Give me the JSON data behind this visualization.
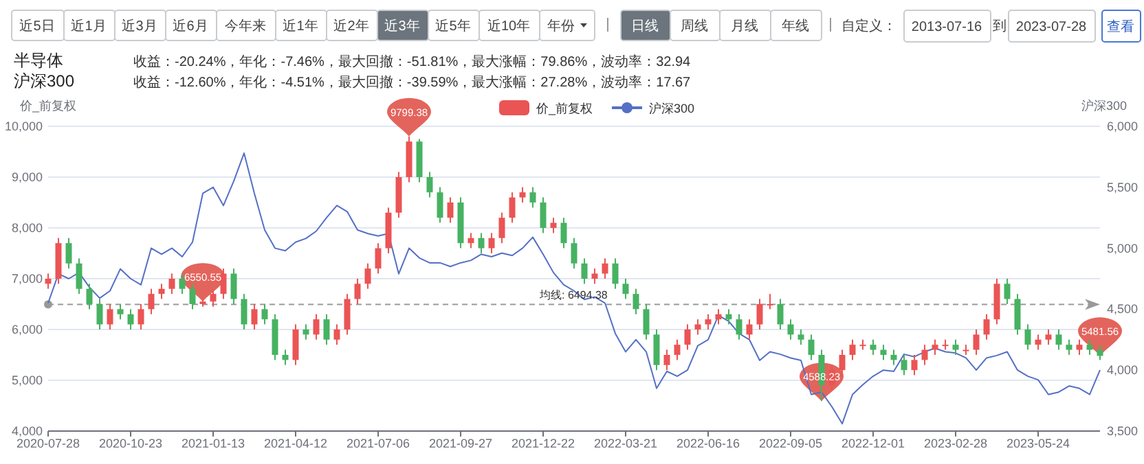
{
  "chart_data": {
    "type": "candlestick",
    "categories": [
      "2020-07-28",
      null,
      null,
      null,
      null,
      null,
      null,
      null,
      "2020-10-23",
      null,
      null,
      null,
      null,
      null,
      null,
      null,
      "2021-01-13",
      null,
      null,
      null,
      null,
      null,
      null,
      null,
      "2021-04-12",
      null,
      null,
      null,
      null,
      null,
      null,
      null,
      "2021-07-06",
      null,
      null,
      null,
      null,
      null,
      null,
      null,
      "2021-09-27",
      null,
      null,
      null,
      null,
      null,
      null,
      null,
      "2021-12-22",
      null,
      null,
      null,
      null,
      null,
      null,
      null,
      "2022-03-21",
      null,
      null,
      null,
      null,
      null,
      null,
      null,
      "2022-06-16",
      null,
      null,
      null,
      null,
      null,
      null,
      null,
      "2022-09-05",
      null,
      null,
      null,
      null,
      null,
      null,
      null,
      "2022-12-01",
      null,
      null,
      null,
      null,
      null,
      null,
      null,
      "2023-02-28",
      null,
      null,
      null,
      null,
      null,
      null,
      null,
      "2023-05-24",
      null,
      null,
      null,
      null,
      null,
      null
    ],
    "series": [
      {
        "name": "价_前复权",
        "type": "candlestick",
        "color": "#eb5454",
        "ohlc": [
          [
            6900,
            7100,
            6800,
            7000
          ],
          [
            7000,
            7800,
            6900,
            7700
          ],
          [
            7700,
            7800,
            7200,
            7300
          ],
          [
            7300,
            7400,
            6700,
            6800
          ],
          [
            6800,
            6900,
            6400,
            6500
          ],
          [
            6500,
            6600,
            6000,
            6100
          ],
          [
            6100,
            6500,
            6000,
            6400
          ],
          [
            6400,
            6500,
            6200,
            6300
          ],
          [
            6300,
            6400,
            6000,
            6100
          ],
          [
            6100,
            6500,
            6000,
            6400
          ],
          [
            6400,
            6800,
            6300,
            6700
          ],
          [
            6700,
            6900,
            6600,
            6800
          ],
          [
            6800,
            7100,
            6700,
            7000
          ],
          [
            7000,
            7100,
            6700,
            6800
          ],
          [
            6800,
            6900,
            6400,
            6500
          ],
          [
            6500,
            6600,
            6450,
            6550
          ],
          [
            6550,
            6800,
            6450,
            6700
          ],
          [
            6700,
            7200,
            6600,
            7100
          ],
          [
            7100,
            7200,
            6500,
            6600
          ],
          [
            6600,
            6700,
            6000,
            6100
          ],
          [
            6100,
            6500,
            6000,
            6400
          ],
          [
            6400,
            6500,
            6100,
            6200
          ],
          [
            6200,
            6300,
            5400,
            5500
          ],
          [
            5500,
            5600,
            5300,
            5400
          ],
          [
            5400,
            6100,
            5300,
            6000
          ],
          [
            6000,
            6100,
            5800,
            5900
          ],
          [
            5900,
            6300,
            5800,
            6200
          ],
          [
            6200,
            6300,
            5700,
            5800
          ],
          [
            5800,
            6100,
            5700,
            6000
          ],
          [
            6000,
            6700,
            5900,
            6600
          ],
          [
            6600,
            7000,
            6500,
            6900
          ],
          [
            6900,
            7300,
            6800,
            7200
          ],
          [
            7200,
            7700,
            7100,
            7600
          ],
          [
            7600,
            8400,
            7500,
            8300
          ],
          [
            8300,
            9100,
            8200,
            9000
          ],
          [
            9000,
            9800,
            8900,
            9700
          ],
          [
            9700,
            9750,
            8900,
            9000
          ],
          [
            9000,
            9100,
            8600,
            8700
          ],
          [
            8700,
            8800,
            8100,
            8200
          ],
          [
            8200,
            8600,
            8100,
            8500
          ],
          [
            8500,
            8600,
            7600,
            7700
          ],
          [
            7700,
            7900,
            7600,
            7800
          ],
          [
            7800,
            7900,
            7500,
            7600
          ],
          [
            7600,
            7900,
            7500,
            7800
          ],
          [
            7800,
            8300,
            7700,
            8200
          ],
          [
            8200,
            8700,
            8100,
            8600
          ],
          [
            8600,
            8800,
            8500,
            8700
          ],
          [
            8700,
            8800,
            8400,
            8500
          ],
          [
            8500,
            8600,
            7900,
            8000
          ],
          [
            8000,
            8200,
            7900,
            8100
          ],
          [
            8100,
            8200,
            7600,
            7700
          ],
          [
            7700,
            7800,
            7200,
            7300
          ],
          [
            7300,
            7400,
            6900,
            7000
          ],
          [
            7000,
            7200,
            6900,
            7100
          ],
          [
            7100,
            7400,
            7000,
            7300
          ],
          [
            7300,
            7400,
            6800,
            6900
          ],
          [
            6900,
            7000,
            6600,
            6700
          ],
          [
            6700,
            6800,
            6300,
            6400
          ],
          [
            6400,
            6500,
            5800,
            5900
          ],
          [
            5900,
            6000,
            5200,
            5300
          ],
          [
            5300,
            5600,
            5200,
            5500
          ],
          [
            5500,
            5800,
            5400,
            5700
          ],
          [
            5700,
            6100,
            5600,
            6000
          ],
          [
            6000,
            6200,
            5900,
            6100
          ],
          [
            6100,
            6300,
            6000,
            6200
          ],
          [
            6200,
            6400,
            6100,
            6300
          ],
          [
            6300,
            6400,
            6100,
            6200
          ],
          [
            6200,
            6300,
            5800,
            5900
          ],
          [
            5900,
            6200,
            5800,
            6100
          ],
          [
            6100,
            6600,
            6000,
            6500
          ],
          [
            6500,
            6700,
            6400,
            6500
          ],
          [
            6500,
            6600,
            6000,
            6100
          ],
          [
            6100,
            6200,
            5800,
            5900
          ],
          [
            5900,
            6000,
            5700,
            5800
          ],
          [
            5800,
            5900,
            5400,
            5500
          ],
          [
            5500,
            5600,
            4590,
            4900
          ],
          [
            4900,
            5300,
            4800,
            5200
          ],
          [
            5200,
            5600,
            5100,
            5500
          ],
          [
            5500,
            5800,
            5400,
            5700
          ],
          [
            5700,
            5800,
            5600,
            5700
          ],
          [
            5700,
            5800,
            5500,
            5600
          ],
          [
            5600,
            5700,
            5400,
            5500
          ],
          [
            5500,
            5600,
            5300,
            5400
          ],
          [
            5400,
            5500,
            5100,
            5200
          ],
          [
            5200,
            5500,
            5100,
            5400
          ],
          [
            5400,
            5700,
            5300,
            5600
          ],
          [
            5600,
            5800,
            5500,
            5700
          ],
          [
            5700,
            5800,
            5600,
            5700
          ],
          [
            5700,
            5800,
            5500,
            5600
          ],
          [
            5600,
            5700,
            5500,
            5600
          ],
          [
            5600,
            6000,
            5500,
            5900
          ],
          [
            5900,
            6300,
            5800,
            6200
          ],
          [
            6200,
            7000,
            6100,
            6900
          ],
          [
            6900,
            7000,
            6500,
            6600
          ],
          [
            6600,
            6700,
            5900,
            6000
          ],
          [
            6000,
            6100,
            5600,
            5700
          ],
          [
            5700,
            5900,
            5600,
            5800
          ],
          [
            5800,
            6000,
            5700,
            5900
          ],
          [
            5900,
            6000,
            5600,
            5700
          ],
          [
            5700,
            5800,
            5500,
            5600
          ],
          [
            5600,
            5800,
            5500,
            5700
          ],
          [
            5700,
            5800,
            5500,
            5600
          ],
          [
            5600,
            5700,
            5400,
            5480
          ]
        ],
        "colors": [
          "#eb5454",
          "#eb5454",
          "#47b262",
          "#47b262",
          "#47b262",
          "#47b262",
          "#eb5454",
          "#47b262",
          "#47b262",
          "#eb5454",
          "#eb5454",
          "#eb5454",
          "#eb5454",
          "#47b262",
          "#47b262",
          "#eb5454",
          "#eb5454",
          "#eb5454",
          "#47b262",
          "#47b262",
          "#eb5454",
          "#47b262",
          "#47b262",
          "#47b262",
          "#eb5454",
          "#47b262",
          "#eb5454",
          "#47b262",
          "#eb5454",
          "#eb5454",
          "#eb5454",
          "#eb5454",
          "#eb5454",
          "#eb5454",
          "#eb5454",
          "#eb5454",
          "#47b262",
          "#47b262",
          "#47b262",
          "#eb5454",
          "#47b262",
          "#eb5454",
          "#47b262",
          "#eb5454",
          "#eb5454",
          "#eb5454",
          "#eb5454",
          "#47b262",
          "#47b262",
          "#eb5454",
          "#47b262",
          "#47b262",
          "#47b262",
          "#eb5454",
          "#eb5454",
          "#47b262",
          "#47b262",
          "#47b262",
          "#47b262",
          "#47b262",
          "#eb5454",
          "#eb5454",
          "#eb5454",
          "#eb5454",
          "#eb5454",
          "#eb5454",
          "#47b262",
          "#47b262",
          "#eb5454",
          "#eb5454",
          "#eb5454",
          "#47b262",
          "#47b262",
          "#47b262",
          "#47b262",
          "#47b262",
          "#eb5454",
          "#eb5454",
          "#eb5454",
          "#eb5454",
          "#47b262",
          "#47b262",
          "#47b262",
          "#47b262",
          "#eb5454",
          "#eb5454",
          "#eb5454",
          "#eb5454",
          "#47b262",
          "#eb5454",
          "#eb5454",
          "#eb5454",
          "#eb5454",
          "#47b262",
          "#47b262",
          "#47b262",
          "#eb5454",
          "#eb5454",
          "#47b262",
          "#47b262",
          "#eb5454",
          "#47b262",
          "#47b262"
        ]
      },
      {
        "name": "沪深300",
        "type": "line",
        "axis": "y2",
        "color": "#5470c6",
        "values": [
          4550,
          4790,
          4750,
          4800,
          4680,
          4590,
          4650,
          4830,
          4750,
          4700,
          5000,
          4950,
          5000,
          4930,
          5050,
          5450,
          5500,
          5350,
          5550,
          5780,
          5450,
          5150,
          5000,
          4980,
          5050,
          5080,
          5140,
          5250,
          5350,
          5300,
          5150,
          5120,
          5100,
          5120,
          4790,
          5000,
          4920,
          4880,
          4880,
          4850,
          4880,
          4900,
          4950,
          4930,
          4960,
          4940,
          5000,
          5090,
          4950,
          4800,
          4700,
          4650,
          4580,
          4600,
          4550,
          4300,
          4150,
          4250,
          4150,
          3850,
          3990,
          3950,
          4000,
          4200,
          4250,
          4450,
          4400,
          4300,
          4250,
          4080,
          4150,
          4130,
          4100,
          4080,
          3800,
          3820,
          3700,
          3560,
          3800,
          3880,
          3950,
          4000,
          3990,
          4130,
          4110,
          4150,
          4180,
          4150,
          4140,
          4100,
          4000,
          4100,
          4120,
          4150,
          4000,
          3950,
          3920,
          3800,
          3820,
          3870,
          3850,
          3800,
          4000
        ]
      }
    ],
    "ylabel": "价_前复权",
    "y2label": "沪深300",
    "ylim": [
      4000,
      10000
    ],
    "yticks": [
      {
        "value": 4000,
        "label": "4,000"
      },
      {
        "value": 5000,
        "label": "5,000"
      },
      {
        "value": 6000,
        "label": "6,000"
      },
      {
        "value": 7000,
        "label": "7,000"
      },
      {
        "value": 8000,
        "label": "8,000"
      },
      {
        "value": 9000,
        "label": "9,000"
      },
      {
        "value": 10000,
        "label": "10,000"
      }
    ],
    "y2lim": [
      3500,
      6000
    ],
    "y2ticks": [
      {
        "value": 3500,
        "label": "3,500"
      },
      {
        "value": 4000,
        "label": "4,000"
      },
      {
        "value": 4500,
        "label": "4,500"
      },
      {
        "value": 5000,
        "label": "5,000"
      },
      {
        "value": 5500,
        "label": "5,500"
      },
      {
        "value": 6000,
        "label": "6,000"
      }
    ],
    "grid": "y",
    "legend": "top",
    "ref_lines": [
      {
        "axis": "y",
        "value": 6494.38,
        "label": "均线: 6494.38",
        "line_style": "dashed",
        "color": "#999999"
      }
    ],
    "annotations": [
      "近5日",
      "近1月",
      "近3月",
      "近6月",
      "今年来",
      "近1年",
      "近2年",
      "近3年",
      "近5年",
      "近10年",
      "年份",
      "日线",
      "周线",
      "月线",
      "年线",
      "自定义：",
      "2013-07-16",
      "到",
      "2023-07-28",
      "查看",
      "半导体",
      "收益：-20.24%，年化：-7.46%，最大回撤：-51.81%，最大涨幅：79.86%，波动率：32.94",
      "沪深300",
      "收益：-12.60%，年化：-4.51%，最大回撤：-39.59%，最大涨幅：27.28%，波动率：17.67",
      {
        "text": "6550.55",
        "y": 6550.55
      },
      {
        "text": "9799.38",
        "y": 9799.38
      },
      {
        "text": "4588.23",
        "y": 4588.23
      },
      {
        "text": "5481.56",
        "y": 5481.56
      }
    ]
  }
}
